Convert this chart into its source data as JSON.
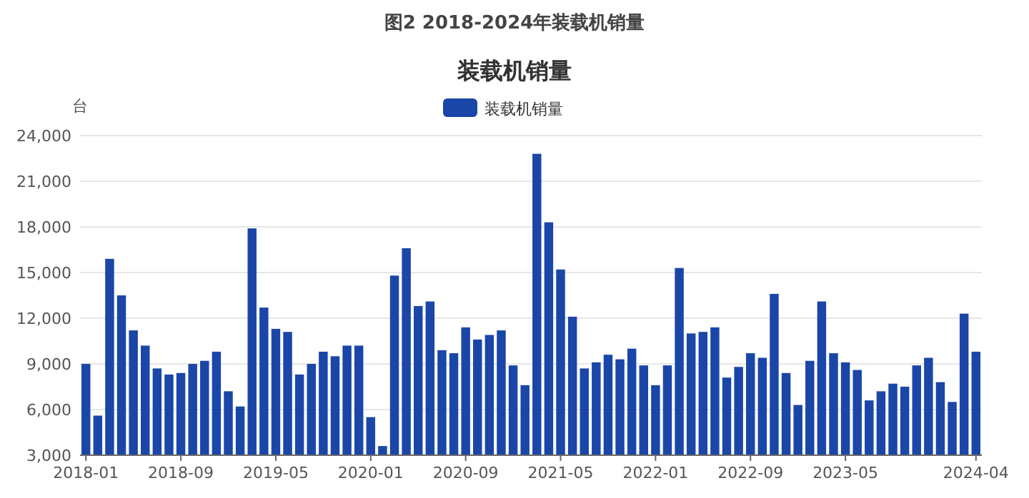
{
  "chart_data": {
    "type": "bar",
    "title": "图2 2018-2024年装载机销量",
    "subtitle": "装载机销量",
    "ylabel": "台",
    "categories": [
      "2018-01",
      null,
      null,
      null,
      null,
      null,
      null,
      null,
      "2018-09",
      null,
      null,
      null,
      null,
      null,
      null,
      null,
      "2019-05",
      null,
      null,
      null,
      null,
      null,
      null,
      null,
      "2020-01",
      null,
      null,
      null,
      null,
      null,
      null,
      null,
      "2020-09",
      null,
      null,
      null,
      null,
      null,
      null,
      null,
      "2021-05",
      null,
      null,
      null,
      null,
      null,
      null,
      null,
      "2022-01",
      null,
      null,
      null,
      null,
      null,
      null,
      null,
      "2022-09",
      null,
      null,
      null,
      null,
      null,
      null,
      null,
      "2023-05",
      null,
      null,
      null,
      null,
      null,
      null,
      null,
      null,
      null,
      null,
      "2024-04"
    ],
    "series": [
      {
        "name": "装载机销量",
        "color": "#1a46a8",
        "values": [
          9000,
          5600,
          15900,
          13500,
          11200,
          10200,
          8700,
          8300,
          8400,
          9000,
          9200,
          9800,
          7200,
          6200,
          17900,
          12700,
          11300,
          11100,
          8300,
          9000,
          9800,
          9500,
          10200,
          10200,
          5500,
          3600,
          14800,
          16600,
          12800,
          13100,
          9900,
          9700,
          11400,
          10600,
          10900,
          11200,
          8900,
          7600,
          22800,
          18300,
          15200,
          12100,
          8700,
          9100,
          9600,
          9300,
          10000,
          8900,
          7600,
          8900,
          15300,
          11000,
          11100,
          11400,
          8100,
          8800,
          9700,
          9400,
          13600,
          8400,
          6300,
          9200,
          13100,
          9700,
          9100,
          8600,
          6600,
          7200,
          7700,
          7500,
          8900,
          9400,
          7800,
          6500,
          12300,
          9800
        ]
      }
    ],
    "ylim": [
      3000,
      24000
    ],
    "yticks": [
      {
        "value": 3000,
        "label": "3,000"
      },
      {
        "value": 6000,
        "label": "6,000"
      },
      {
        "value": 9000,
        "label": "9,000"
      },
      {
        "value": 12000,
        "label": "12,000"
      },
      {
        "value": 15000,
        "label": "15,000"
      },
      {
        "value": 18000,
        "label": "18,000"
      },
      {
        "value": 21000,
        "label": "21,000"
      },
      {
        "value": 24000,
        "label": "24,000"
      }
    ],
    "grid": "y",
    "legend": "top"
  }
}
